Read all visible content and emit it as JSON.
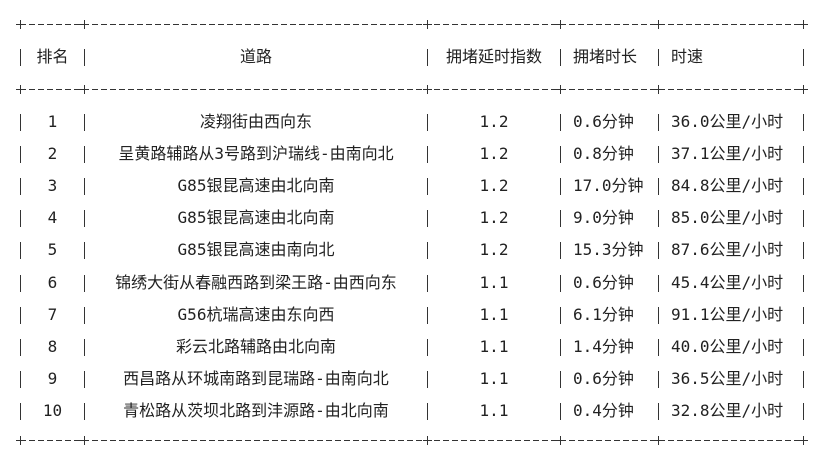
{
  "table": {
    "headers": [
      "排名",
      "道路",
      "拥堵延时指数",
      "拥堵时长",
      "时速"
    ],
    "rows": [
      [
        "1",
        "凌翔街由西向东",
        "1.2",
        "0.6分钟",
        "36.0公里/小时"
      ],
      [
        "2",
        "呈黄路辅路从3号路到沪瑞线-由南向北",
        "1.2",
        "0.8分钟",
        "37.1公里/小时"
      ],
      [
        "3",
        "G85银昆高速由北向南",
        "1.2",
        "17.0分钟",
        "84.8公里/小时"
      ],
      [
        "4",
        "G85银昆高速由北向南",
        "1.2",
        "9.0分钟",
        "85.0公里/小时"
      ],
      [
        "5",
        "G85银昆高速由南向北",
        "1.2",
        "15.3分钟",
        "87.6公里/小时"
      ],
      [
        "6",
        "锦绣大街从春融西路到梁王路-由西向东",
        "1.1",
        "0.6分钟",
        "45.4公里/小时"
      ],
      [
        "7",
        "G56杭瑞高速由东向西",
        "1.1",
        "6.1分钟",
        "91.1公里/小时"
      ],
      [
        "8",
        "彩云北路辅路由北向南",
        "1.1",
        "1.4分钟",
        "40.0公里/小时"
      ],
      [
        "9",
        "西昌路从环城南路到昆瑞路-由南向北",
        "1.1",
        "0.6分钟",
        "36.5公里/小时"
      ],
      [
        "10",
        "青松路从茨坝北路到沣源路-由北向南",
        "1.1",
        "0.4分钟",
        "32.8公里/小时"
      ]
    ]
  }
}
